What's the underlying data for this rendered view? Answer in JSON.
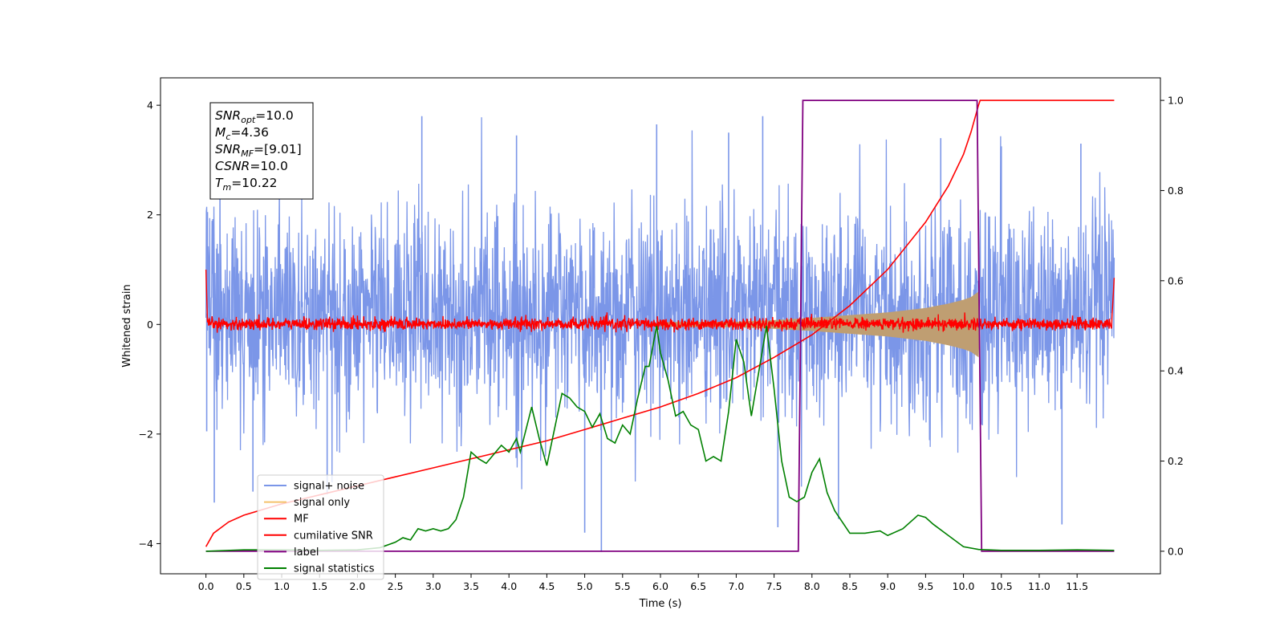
{
  "chart_data": {
    "type": "line",
    "xlabel": "Time (s)",
    "ylabel": "Whitened strain",
    "xlim": [
      -0.6,
      12.6
    ],
    "ylim": [
      -4.55,
      4.5
    ],
    "ylim_right": [
      -0.05,
      1.05
    ],
    "x_ticks": [
      "0.0",
      "0.5",
      "1.0",
      "1.5",
      "2.0",
      "2.5",
      "3.0",
      "3.5",
      "4.0",
      "4.5",
      "5.0",
      "5.5",
      "6.0",
      "6.5",
      "7.0",
      "7.5",
      "8.0",
      "8.5",
      "9.0",
      "9.5",
      "10.0",
      "10.5",
      "11.0",
      "11.5"
    ],
    "y_ticks_left": [
      "4",
      "2",
      "0",
      "−2",
      "−4"
    ],
    "y_ticks_right": [
      "1.0",
      "0.8",
      "0.6",
      "0.4",
      "0.2",
      "0.0"
    ],
    "grid": false,
    "legend_position": "lower-left",
    "legend": [
      {
        "label": "signal+ noise",
        "color": "#7b96e8"
      },
      {
        "label": "signal only",
        "color": "#f5c26b"
      },
      {
        "label": "MF",
        "color": "#ff0000"
      },
      {
        "label": "cumilative SNR",
        "color": "#ff0000"
      },
      {
        "label": "label",
        "color": "#800080"
      },
      {
        "label": "signal statistics",
        "color": "#008000"
      }
    ],
    "annotation": [
      {
        "name": "SNR",
        "sub": "opt",
        "value": "=10.0"
      },
      {
        "name": "M",
        "sub": "c",
        "value": "=4.36"
      },
      {
        "name": "SNR",
        "sub": "MF",
        "value": "=[9.01]"
      },
      {
        "name": "CSNR",
        "sub": "",
        "value": "=10.0"
      },
      {
        "name": "T",
        "sub": "m",
        "value": "=10.22"
      }
    ],
    "series": [
      {
        "name": "signal+ noise",
        "axis": "left",
        "x_range": [
          0.0,
          11.99
        ],
        "y_typical_range": [
          -1.6,
          2.0
        ],
        "y_extremes": [
          -4.15,
          4.08
        ]
      },
      {
        "name": "signal only",
        "axis": "left",
        "envelope": [
          [
            0.0,
            0.0
          ],
          [
            7.0,
            0.05
          ],
          [
            7.5,
            0.08
          ],
          [
            8.0,
            0.12
          ],
          [
            8.5,
            0.17
          ],
          [
            9.0,
            0.22
          ],
          [
            9.5,
            0.3
          ],
          [
            9.8,
            0.38
          ],
          [
            10.0,
            0.45
          ],
          [
            10.1,
            0.5
          ],
          [
            10.2,
            0.6
          ],
          [
            10.22,
            0.0
          ],
          [
            11.99,
            0.0
          ]
        ]
      },
      {
        "name": "MF",
        "axis": "left",
        "y_typical_range": [
          -0.12,
          0.15
        ],
        "y_edges": [
          1.0,
          0.85
        ]
      },
      {
        "name": "cumilative SNR",
        "axis": "right",
        "points": [
          [
            0.0,
            0.01
          ],
          [
            0.1,
            0.04
          ],
          [
            0.3,
            0.065
          ],
          [
            0.5,
            0.08
          ],
          [
            1.0,
            0.105
          ],
          [
            1.5,
            0.125
          ],
          [
            2.0,
            0.145
          ],
          [
            2.5,
            0.165
          ],
          [
            3.0,
            0.185
          ],
          [
            3.5,
            0.205
          ],
          [
            4.0,
            0.225
          ],
          [
            4.5,
            0.245
          ],
          [
            5.0,
            0.27
          ],
          [
            5.5,
            0.295
          ],
          [
            6.0,
            0.32
          ],
          [
            6.5,
            0.35
          ],
          [
            7.0,
            0.385
          ],
          [
            7.5,
            0.43
          ],
          [
            8.0,
            0.48
          ],
          [
            8.5,
            0.545
          ],
          [
            9.0,
            0.625
          ],
          [
            9.5,
            0.73
          ],
          [
            9.8,
            0.81
          ],
          [
            10.0,
            0.88
          ],
          [
            10.1,
            0.93
          ],
          [
            10.2,
            0.99
          ],
          [
            10.22,
            1.0
          ],
          [
            11.99,
            1.0
          ]
        ]
      },
      {
        "name": "label",
        "axis": "right",
        "points": [
          [
            0.0,
            0.0
          ],
          [
            7.82,
            0.0
          ],
          [
            7.88,
            1.0
          ],
          [
            10.18,
            1.0
          ],
          [
            10.24,
            0.0
          ],
          [
            11.99,
            0.0
          ]
        ]
      },
      {
        "name": "signal statistics",
        "axis": "right",
        "points": [
          [
            0.0,
            0.0
          ],
          [
            0.5,
            0.003
          ],
          [
            1.0,
            0.003
          ],
          [
            1.5,
            0.002
          ],
          [
            2.0,
            0.003
          ],
          [
            2.3,
            0.008
          ],
          [
            2.5,
            0.02
          ],
          [
            2.6,
            0.03
          ],
          [
            2.7,
            0.025
          ],
          [
            2.8,
            0.05
          ],
          [
            2.9,
            0.045
          ],
          [
            3.0,
            0.05
          ],
          [
            3.1,
            0.045
          ],
          [
            3.2,
            0.05
          ],
          [
            3.3,
            0.07
          ],
          [
            3.4,
            0.12
          ],
          [
            3.5,
            0.22
          ],
          [
            3.6,
            0.205
          ],
          [
            3.7,
            0.195
          ],
          [
            3.8,
            0.215
          ],
          [
            3.9,
            0.235
          ],
          [
            4.0,
            0.22
          ],
          [
            4.1,
            0.25
          ],
          [
            4.15,
            0.22
          ],
          [
            4.3,
            0.32
          ],
          [
            4.4,
            0.25
          ],
          [
            4.5,
            0.19
          ],
          [
            4.6,
            0.27
          ],
          [
            4.7,
            0.35
          ],
          [
            4.8,
            0.34
          ],
          [
            4.9,
            0.32
          ],
          [
            5.0,
            0.31
          ],
          [
            5.1,
            0.275
          ],
          [
            5.2,
            0.305
          ],
          [
            5.3,
            0.25
          ],
          [
            5.4,
            0.24
          ],
          [
            5.5,
            0.28
          ],
          [
            5.6,
            0.26
          ],
          [
            5.7,
            0.34
          ],
          [
            5.8,
            0.41
          ],
          [
            5.85,
            0.41
          ],
          [
            5.95,
            0.5
          ],
          [
            6.0,
            0.44
          ],
          [
            6.1,
            0.38
          ],
          [
            6.2,
            0.3
          ],
          [
            6.3,
            0.31
          ],
          [
            6.4,
            0.28
          ],
          [
            6.5,
            0.27
          ],
          [
            6.6,
            0.2
          ],
          [
            6.7,
            0.21
          ],
          [
            6.8,
            0.2
          ],
          [
            6.9,
            0.31
          ],
          [
            7.0,
            0.47
          ],
          [
            7.1,
            0.42
          ],
          [
            7.2,
            0.3
          ],
          [
            7.3,
            0.4
          ],
          [
            7.4,
            0.5
          ],
          [
            7.5,
            0.36
          ],
          [
            7.6,
            0.2
          ],
          [
            7.7,
            0.12
          ],
          [
            7.8,
            0.11
          ],
          [
            7.9,
            0.12
          ],
          [
            8.0,
            0.175
          ],
          [
            8.1,
            0.205
          ],
          [
            8.2,
            0.13
          ],
          [
            8.3,
            0.09
          ],
          [
            8.5,
            0.04
          ],
          [
            8.7,
            0.04
          ],
          [
            8.9,
            0.045
          ],
          [
            9.0,
            0.035
          ],
          [
            9.2,
            0.05
          ],
          [
            9.4,
            0.08
          ],
          [
            9.5,
            0.075
          ],
          [
            9.6,
            0.06
          ],
          [
            9.8,
            0.035
          ],
          [
            10.0,
            0.01
          ],
          [
            10.2,
            0.004
          ],
          [
            10.5,
            0.002
          ],
          [
            11.0,
            0.002
          ],
          [
            11.5,
            0.003
          ],
          [
            11.99,
            0.002
          ]
        ]
      }
    ]
  }
}
